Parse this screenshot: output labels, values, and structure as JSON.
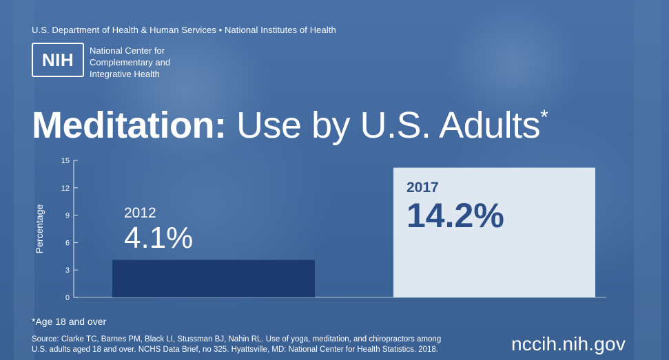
{
  "header": {
    "agency_line": "U.S. Department of Health & Human Services • National Institutes of Health",
    "logo_mark": "NIH",
    "center_name_lines": [
      "National Center for",
      "Complementary and",
      "Integrative Health"
    ]
  },
  "title": {
    "bold": "Meditation:",
    "rest": " Use by U.S. Adults",
    "asterisk": "*"
  },
  "chart_data": {
    "type": "bar",
    "categories": [
      "2012",
      "2017"
    ],
    "values": [
      4.1,
      14.2
    ],
    "value_labels": [
      "4.1%",
      "14.2%"
    ],
    "ylabel": "Percentage",
    "ylim": [
      0,
      15
    ],
    "yticks": [
      0,
      3,
      6,
      9,
      12,
      15
    ],
    "ytick_labels": [
      "0",
      "3",
      "6",
      "9",
      "12",
      "15"
    ],
    "grid": false,
    "colors": [
      "#1d3a6e",
      "#dfe7f1"
    ],
    "label_colors": [
      "#ffffff",
      "#2b4f86"
    ]
  },
  "footnote": "*Age 18 and over",
  "source_lines": [
    "Source: Clarke TC, Barnes PM, Black LI, Stussman BJ, Nahin RL. Use of yoga, meditation, and chiropractors among",
    "U.S. adults aged 18 and over. NCHS Data Brief, no 325. Hyattsville, MD: National Center for Health Statistics. 2018."
  ],
  "url": "nccih.nih.gov"
}
